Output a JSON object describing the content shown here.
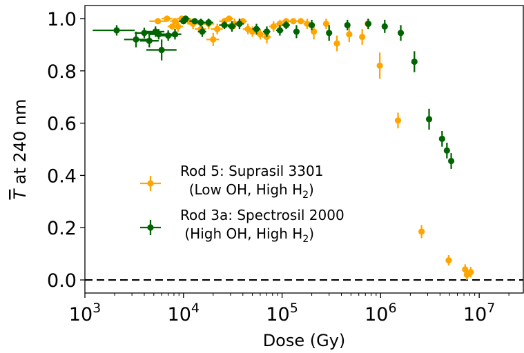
{
  "chart_data": {
    "type": "scatter",
    "xscale": "log",
    "xlim": [
      1000,
      28000000
    ],
    "ylim": [
      -0.05,
      1.05
    ],
    "xlabel": "Dose (Gy)",
    "ylabel": "T at 240 nm",
    "ylabel_symbol": "T",
    "ylabel_rest": " at 240 nm",
    "xticks": [
      {
        "value": 1000,
        "base": "10",
        "exp": "3"
      },
      {
        "value": 10000,
        "base": "10",
        "exp": "4"
      },
      {
        "value": 100000,
        "base": "10",
        "exp": "5"
      },
      {
        "value": 1000000,
        "base": "10",
        "exp": "6"
      },
      {
        "value": 10000000,
        "base": "10",
        "exp": "7"
      }
    ],
    "yticks": [
      {
        "value": 0.0,
        "label": "0.0"
      },
      {
        "value": 0.2,
        "label": "0.2"
      },
      {
        "value": 0.4,
        "label": "0.4"
      },
      {
        "value": 0.6,
        "label": "0.6"
      },
      {
        "value": 0.8,
        "label": "0.8"
      },
      {
        "value": 1.0,
        "label": "1.0"
      }
    ],
    "reference_line": {
      "y": 0.0,
      "style": "dashed",
      "color": "#000000"
    },
    "legend": [
      {
        "series_index": 0,
        "line1": "Rod 5: Suprasil 3301",
        "line2_pre": "  (Low OH, High H",
        "line2_sub": "2",
        "line2_post": ")"
      },
      {
        "series_index": 1,
        "line1": "Rod 3a: Spectrosil 2000",
        "line2_pre": " (High OH, High H",
        "line2_sub": "2",
        "line2_post": ")"
      }
    ],
    "series": [
      {
        "name": "Rod 5: Suprasil 3301 (Low OH, High H2)",
        "color": "#FFA500",
        "points": [
          {
            "x": 5500,
            "y": 0.99,
            "xlo": 4500,
            "xhi": 6700,
            "yerr": 0.01
          },
          {
            "x": 6800,
            "y": 1.0,
            "xlo": 6000,
            "xhi": 7700,
            "yerr": 0.01
          },
          {
            "x": 7700,
            "y": 0.97,
            "xlo": 6900,
            "xhi": 8600,
            "yerr": 0.01
          },
          {
            "x": 8200,
            "y": 0.99,
            "xlo": 7300,
            "xhi": 9200,
            "yerr": 0.01
          },
          {
            "x": 8800,
            "y": 0.97,
            "xlo": 7800,
            "xhi": 9900,
            "yerr": 0.02
          },
          {
            "x": 9600,
            "y": 1.0,
            "xlo": 8600,
            "xhi": 10800,
            "yerr": 0.01
          },
          {
            "x": 11500,
            "y": 0.99,
            "xlo": 10300,
            "xhi": 12900,
            "yerr": 0.01
          },
          {
            "x": 12500,
            "y": 0.98,
            "xlo": 11000,
            "xhi": 14000,
            "yerr": 0.02
          },
          {
            "x": 15000,
            "y": 0.96,
            "xlo": 13000,
            "xhi": 17000,
            "yerr": 0.02
          },
          {
            "x": 18000,
            "y": 0.98,
            "xlo": 16000,
            "xhi": 20500,
            "yerr": 0.02
          },
          {
            "x": 20000,
            "y": 0.92,
            "xlo": 17000,
            "xhi": 23000,
            "yerr": 0.025
          },
          {
            "x": 22000,
            "y": 0.96,
            "xlo": 19000,
            "xhi": 25000,
            "yerr": 0.02
          },
          {
            "x": 26000,
            "y": 0.99,
            "xlo": 23000,
            "xhi": 29000,
            "yerr": 0.01
          },
          {
            "x": 29000,
            "y": 1.0,
            "xlo": 26000,
            "xhi": 32000,
            "yerr": 0.01
          },
          {
            "x": 33000,
            "y": 0.98,
            "xlo": 29000,
            "xhi": 37000,
            "yerr": 0.02
          },
          {
            "x": 40000,
            "y": 0.99,
            "xlo": 36000,
            "xhi": 44000,
            "yerr": 0.01
          },
          {
            "x": 45000,
            "y": 0.96,
            "xlo": 40000,
            "xhi": 50000,
            "yerr": 0.02
          },
          {
            "x": 50000,
            "y": 0.95,
            "xlo": 45000,
            "xhi": 55000,
            "yerr": 0.02
          },
          {
            "x": 60000,
            "y": 0.94,
            "xlo": 54000,
            "xhi": 66000,
            "yerr": 0.02
          },
          {
            "x": 70000,
            "y": 0.93,
            "xlo": 63000,
            "xhi": 77000,
            "yerr": 0.025
          },
          {
            "x": 82000,
            "y": 0.97,
            "xlo": 74000,
            "xhi": 90000,
            "yerr": 0.02
          },
          {
            "x": 95000,
            "y": 0.98,
            "xlo": 86000,
            "xhi": 104000,
            "yerr": 0.015
          },
          {
            "x": 110000,
            "y": 0.99,
            "xlo": 100000,
            "xhi": 120000,
            "yerr": 0.01
          },
          {
            "x": 130000,
            "y": 0.99,
            "xlo": 118000,
            "xhi": 142000,
            "yerr": 0.01
          },
          {
            "x": 155000,
            "y": 0.99,
            "xlo": 140000,
            "xhi": 170000,
            "yerr": 0.01
          },
          {
            "x": 180000,
            "y": 0.98,
            "xlo": 165000,
            "xhi": 195000,
            "yerr": 0.02
          },
          {
            "x": 210000,
            "y": 0.95,
            "xlo": 195000,
            "xhi": 225000,
            "yerr": 0.03
          },
          {
            "x": 280000,
            "y": 0.98,
            "xlo": 260000,
            "xhi": 300000,
            "yerr": 0.02
          },
          {
            "x": 360000,
            "y": 0.905,
            "xlo": 340000,
            "xhi": 380000,
            "yerr": 0.03
          },
          {
            "x": 480000,
            "y": 0.94,
            "xlo": 460000,
            "xhi": 500000,
            "yerr": 0.03
          },
          {
            "x": 650000,
            "y": 0.93,
            "xlo": 630000,
            "xhi": 670000,
            "yerr": 0.03
          },
          {
            "x": 740000,
            "y": 0.98,
            "xlo": 720000,
            "xhi": 760000,
            "yerr": 0.02
          },
          {
            "x": 980000,
            "y": 0.82,
            "xlo": 950000,
            "xhi": 1010000,
            "yerr": 0.05
          },
          {
            "x": 1500000,
            "y": 0.61,
            "xlo": 1460000,
            "xhi": 1540000,
            "yerr": 0.03
          },
          {
            "x": 2600000,
            "y": 0.185,
            "xlo": 2550000,
            "xhi": 2650000,
            "yerr": 0.025
          },
          {
            "x": 4900000,
            "y": 0.075,
            "xlo": 4850000,
            "xhi": 4950000,
            "yerr": 0.02
          },
          {
            "x": 7200000,
            "y": 0.04,
            "xlo": 7100000,
            "xhi": 7300000,
            "yerr": 0.02
          },
          {
            "x": 7500000,
            "y": 0.02,
            "xlo": 7400000,
            "xhi": 7600000,
            "yerr": 0.02
          },
          {
            "x": 8200000,
            "y": 0.03,
            "xlo": 8100000,
            "xhi": 8300000,
            "yerr": 0.02
          }
        ]
      },
      {
        "name": "Rod 3a: Spectrosil 2000 (High OH, High H2)",
        "color": "#006400",
        "points": [
          {
            "x": 2100,
            "y": 0.955,
            "xlo": 1200,
            "xhi": 3200,
            "yerr": 0.02
          },
          {
            "x": 3300,
            "y": 0.92,
            "xlo": 2500,
            "xhi": 4400,
            "yerr": 0.03
          },
          {
            "x": 4000,
            "y": 0.945,
            "xlo": 3200,
            "xhi": 5000,
            "yerr": 0.02
          },
          {
            "x": 4500,
            "y": 0.915,
            "xlo": 3600,
            "xhi": 5600,
            "yerr": 0.025
          },
          {
            "x": 5200,
            "y": 0.95,
            "xlo": 4200,
            "xhi": 6400,
            "yerr": 0.02
          },
          {
            "x": 5600,
            "y": 0.94,
            "xlo": 4400,
            "xhi": 7000,
            "yerr": 0.02
          },
          {
            "x": 6000,
            "y": 0.88,
            "xlo": 4200,
            "xhi": 8500,
            "yerr": 0.04
          },
          {
            "x": 7000,
            "y": 0.935,
            "xlo": 5500,
            "xhi": 8800,
            "yerr": 0.02
          },
          {
            "x": 8200,
            "y": 0.94,
            "xlo": 7000,
            "xhi": 9500,
            "yerr": 0.02
          },
          {
            "x": 10000,
            "y": 0.99,
            "xlo": 9000,
            "xhi": 11000,
            "yerr": 0.01
          },
          {
            "x": 10500,
            "y": 1.0,
            "xlo": 9500,
            "xhi": 11500,
            "yerr": 0.01
          },
          {
            "x": 13000,
            "y": 0.99,
            "xlo": 11500,
            "xhi": 14500,
            "yerr": 0.01
          },
          {
            "x": 15000,
            "y": 0.985,
            "xlo": 13500,
            "xhi": 16500,
            "yerr": 0.015
          },
          {
            "x": 15500,
            "y": 0.95,
            "xlo": 14000,
            "xhi": 17000,
            "yerr": 0.02
          },
          {
            "x": 18000,
            "y": 0.985,
            "xlo": 16000,
            "xhi": 20000,
            "yerr": 0.015
          },
          {
            "x": 26000,
            "y": 0.975,
            "xlo": 23000,
            "xhi": 29000,
            "yerr": 0.015
          },
          {
            "x": 31000,
            "y": 0.97,
            "xlo": 28000,
            "xhi": 34000,
            "yerr": 0.02
          },
          {
            "x": 37000,
            "y": 0.98,
            "xlo": 33000,
            "xhi": 41000,
            "yerr": 0.02
          },
          {
            "x": 55000,
            "y": 0.96,
            "xlo": 50000,
            "xhi": 60000,
            "yerr": 0.02
          },
          {
            "x": 70000,
            "y": 0.95,
            "xlo": 64000,
            "xhi": 76000,
            "yerr": 0.02
          },
          {
            "x": 95000,
            "y": 0.955,
            "xlo": 87000,
            "xhi": 103000,
            "yerr": 0.02
          },
          {
            "x": 110000,
            "y": 0.975,
            "xlo": 100000,
            "xhi": 120000,
            "yerr": 0.015
          },
          {
            "x": 140000,
            "y": 0.95,
            "xlo": 130000,
            "xhi": 150000,
            "yerr": 0.025
          },
          {
            "x": 200000,
            "y": 0.975,
            "xlo": 185000,
            "xhi": 215000,
            "yerr": 0.02
          },
          {
            "x": 300000,
            "y": 0.945,
            "xlo": 285000,
            "xhi": 315000,
            "yerr": 0.03
          },
          {
            "x": 460000,
            "y": 0.975,
            "xlo": 440000,
            "xhi": 480000,
            "yerr": 0.02
          },
          {
            "x": 750000,
            "y": 0.98,
            "xlo": 720000,
            "xhi": 780000,
            "yerr": 0.02
          },
          {
            "x": 1100000,
            "y": 0.97,
            "xlo": 1060000,
            "xhi": 1140000,
            "yerr": 0.025
          },
          {
            "x": 1600000,
            "y": 0.945,
            "xlo": 1550000,
            "xhi": 1650000,
            "yerr": 0.03
          },
          {
            "x": 2200000,
            "y": 0.835,
            "xlo": 2150000,
            "xhi": 2250000,
            "yerr": 0.04
          },
          {
            "x": 3100000,
            "y": 0.615,
            "xlo": 3050000,
            "xhi": 3150000,
            "yerr": 0.04
          },
          {
            "x": 4200000,
            "y": 0.54,
            "xlo": 4150000,
            "xhi": 4250000,
            "yerr": 0.03
          },
          {
            "x": 4700000,
            "y": 0.495,
            "xlo": 4650000,
            "xhi": 4750000,
            "yerr": 0.03
          },
          {
            "x": 5200000,
            "y": 0.455,
            "xlo": 5150000,
            "xhi": 5250000,
            "yerr": 0.03
          }
        ]
      }
    ]
  }
}
